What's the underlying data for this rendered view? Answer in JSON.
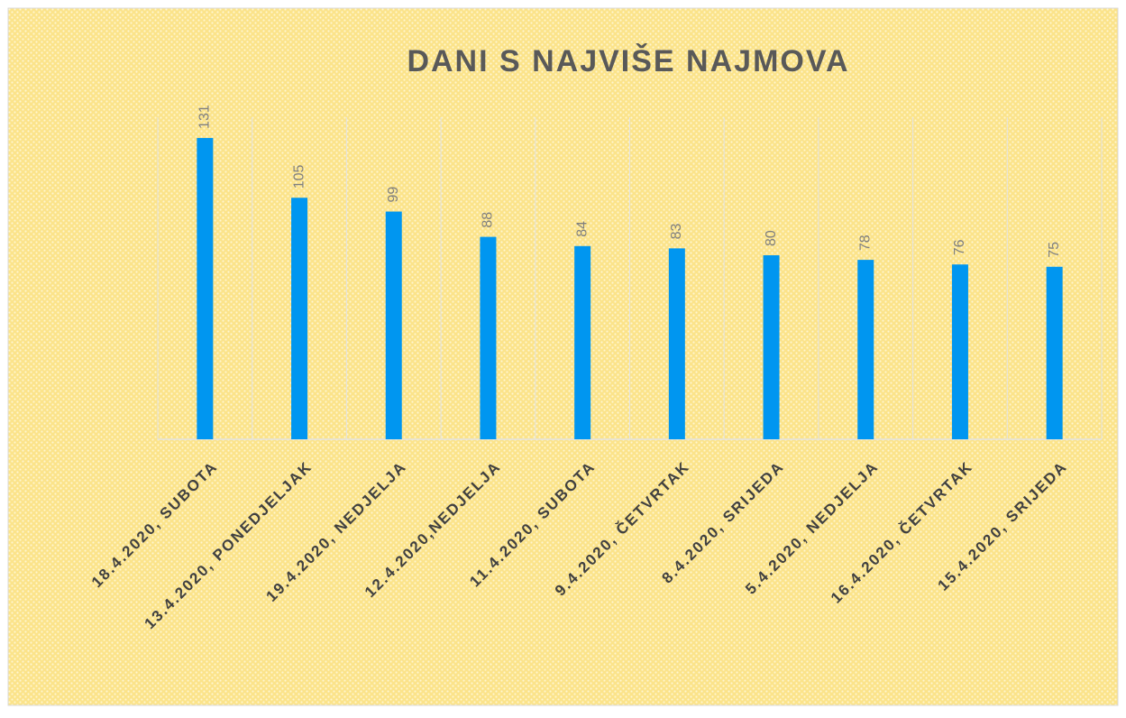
{
  "chart_data": {
    "type": "bar",
    "title": "DANI S NAJVIŠE NAJMOVA",
    "categories": [
      "18.4.2020, SUBOTA",
      "13.4.2020, PONEDJELJAK",
      "19.4.2020, NEDJELJA",
      "12.4.2020,NEDJELJA",
      "11.4.2020, SUBOTA",
      "9.4.2020, ČETVRTAK",
      "8.4.2020, SRIJEDA",
      "5.4.2020, NEDJELJA",
      "16.4.2020, ČETVRTAK",
      "15.4.2020, SRIJEDA"
    ],
    "values": [
      131,
      105,
      99,
      88,
      84,
      83,
      80,
      78,
      76,
      75
    ],
    "color": "#0096f0",
    "ylim": [
      0,
      140
    ]
  }
}
